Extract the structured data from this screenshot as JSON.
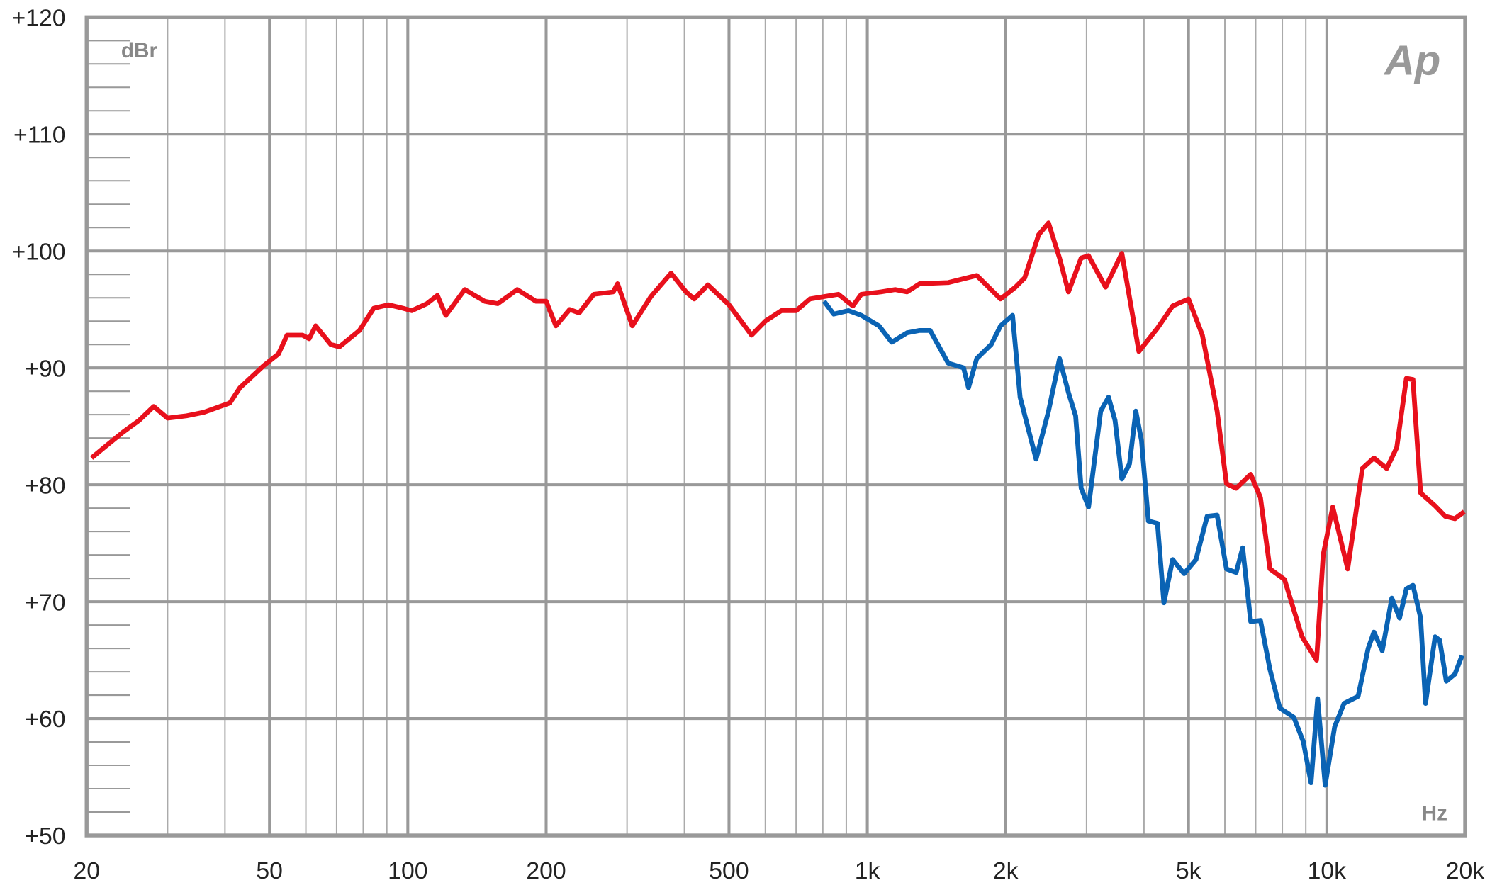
{
  "chart_data": {
    "type": "line",
    "y_label": "dBr",
    "x_label": "Hz",
    "logo": "Ap",
    "x_log": true,
    "grid": true,
    "xlim": [
      20,
      20000
    ],
    "ylim": [
      50,
      120
    ],
    "xticks": [
      20,
      50,
      100,
      200,
      500,
      {
        "value": 1000,
        "label": "1k"
      },
      {
        "value": 2000,
        "label": "2k"
      },
      {
        "value": 5000,
        "label": "5k"
      },
      {
        "value": 10000,
        "label": "10k"
      },
      {
        "value": 20000,
        "label": "20k"
      }
    ],
    "yticks": [
      {
        "value": 50,
        "label": "+50"
      },
      {
        "value": 60,
        "label": "+60"
      },
      {
        "value": 70,
        "label": "+70"
      },
      {
        "value": 80,
        "label": "+80"
      },
      {
        "value": 90,
        "label": "+90"
      },
      {
        "value": 100,
        "label": "+100"
      },
      {
        "value": 110,
        "label": "+110"
      },
      {
        "value": 120,
        "label": "+120"
      }
    ],
    "series": [
      {
        "color": "#e8101c",
        "x": [
          20.5,
          22,
          24,
          26,
          28,
          30,
          33,
          36,
          41,
          43.1,
          48.6,
          52.3,
          54.6,
          59,
          61,
          63,
          68,
          71,
          78.5,
          84.3,
          90.8,
          97.6,
          102,
          110,
          116,
          121,
          133,
          147,
          157,
          173,
          190,
          200,
          210,
          225,
          236,
          254,
          280,
          286,
          308,
          338,
          374,
          403,
          420,
          450,
          500,
          560,
          600,
          650,
          700,
          750,
          805,
          865,
          930,
          970,
          1070,
          1150,
          1220,
          1300,
          1500,
          1730,
          1950,
          2100,
          2200,
          2360,
          2480,
          2620,
          2740,
          2920,
          3030,
          3300,
          3580,
          3900,
          4280,
          4620,
          5000,
          5360,
          5770,
          6050,
          6350,
          6830,
          7170,
          7520,
          8090,
          8830,
          9500,
          9820,
          10300,
          11100,
          11950,
          12660,
          13500,
          14200,
          14900,
          15400,
          16000,
          17200,
          18100,
          19000,
          19900
        ],
        "values": [
          82.3,
          83.3,
          84.5,
          85.5,
          86.7,
          85.7,
          85.9,
          86.2,
          87,
          88.3,
          90.2,
          91.2,
          92.8,
          92.8,
          92.5,
          93.6,
          92,
          91.8,
          93.2,
          95.1,
          95.4,
          95.1,
          94.9,
          95.5,
          96.2,
          94.5,
          96.7,
          95.7,
          95.5,
          96.7,
          95.7,
          95.7,
          93.6,
          95,
          94.7,
          96.3,
          96.5,
          97.2,
          93.6,
          96.1,
          98.1,
          96.5,
          95.9,
          97.1,
          95.4,
          92.8,
          94,
          94.9,
          94.9,
          95.9,
          96.1,
          96.3,
          95.3,
          96.3,
          96.5,
          96.7,
          96.5,
          97.2,
          97.3,
          97.9,
          95.9,
          96.9,
          97.7,
          101.4,
          102.4,
          99.4,
          96.5,
          99.4,
          99.6,
          96.9,
          99.8,
          91.4,
          93.4,
          95.3,
          95.9,
          92.8,
          86.3,
          80.1,
          79.7,
          80.9,
          78.9,
          72.8,
          71.9,
          67,
          65,
          74,
          78.1,
          72.8,
          81.4,
          82.3,
          81.4,
          83.2,
          89.1,
          89,
          79.3,
          78.2,
          77.3,
          77.1,
          77.7
        ]
      },
      {
        "color": "#0a63b4",
        "x": [
          805,
          845,
          910,
          970,
          1060,
          1130,
          1220,
          1300,
          1370,
          1500,
          1620,
          1660,
          1730,
          1860,
          1950,
          2070,
          2150,
          2330,
          2480,
          2620,
          2740,
          2840,
          2920,
          3030,
          3220,
          3350,
          3460,
          3580,
          3720,
          3840,
          3950,
          4090,
          4280,
          4420,
          4620,
          4890,
          5190,
          5490,
          5770,
          6050,
          6350,
          6560,
          6830,
          7170,
          7520,
          7900,
          8480,
          8890,
          9240,
          9550,
          9920,
          10400,
          10900,
          11700,
          12300,
          12660,
          13200,
          13850,
          14400,
          14900,
          15400,
          16000,
          16400,
          17200,
          17600,
          18200,
          19000,
          19700
        ],
        "values": [
          95.7,
          94.6,
          94.9,
          94.5,
          93.6,
          92.2,
          93,
          93.2,
          93.2,
          90.4,
          90,
          88.3,
          90.8,
          92,
          93.6,
          94.5,
          87.5,
          82.2,
          86.3,
          90.8,
          87.9,
          85.9,
          79.7,
          78.1,
          86.3,
          87.5,
          85.5,
          80.5,
          81.8,
          86.3,
          83.8,
          76.9,
          76.7,
          69.9,
          73.6,
          72.4,
          73.6,
          77.3,
          77.4,
          72.8,
          72.5,
          74.6,
          68.3,
          68.4,
          64.2,
          60.9,
          60.1,
          58,
          54.5,
          61.7,
          54.3,
          59.3,
          61.3,
          61.9,
          66,
          67.4,
          65.8,
          70.3,
          68.6,
          71.1,
          71.4,
          68.6,
          61.3,
          67,
          66.7,
          63.2,
          63.8,
          65.4
        ]
      }
    ]
  }
}
